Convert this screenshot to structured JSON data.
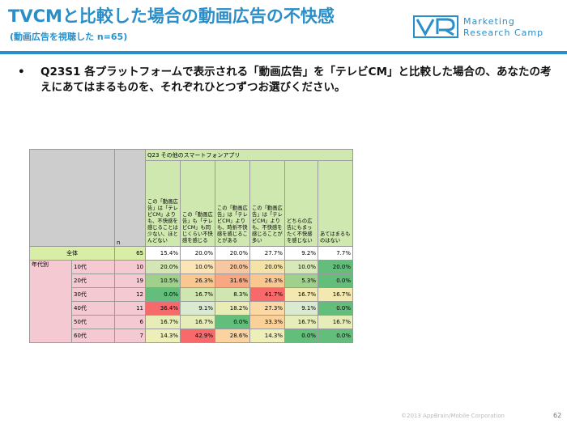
{
  "header": {
    "title": "TVCMと比較した場合の動画広告の不快感",
    "subtitle": "(動画広告を視聴した n=65)",
    "logo_line1": "Marketing",
    "logo_line2": "Research Camp"
  },
  "question": {
    "bullet": "•",
    "text": "Q23S1 各プラットフォームで表示される「動画広告」を「テレビCM」と比較した場合の、あなたの考えにあてはまるものを、それぞれひとつずつお選びください。"
  },
  "table": {
    "n_header": "n",
    "group_header": "Q23 その他のスマートフォンアプリ",
    "columns": [
      "この「動画広告」は「テレビCM」よりも、不快感を感じることは少ない、ほとんどない",
      "この「動画広告」も「テレビCM」も同じくらい不快感を感じる",
      "この「動画広告」は「テレビCM」よりも、時折不快感を感じることがある",
      "この「動画広告」は「テレビCM」よりも、不快感を感じることが多い",
      "どちらの広告にもまったく不快感を感じない",
      "あてはまるものはない"
    ],
    "total": {
      "label": "全体",
      "n": "65",
      "values": [
        "15.4%",
        "20.0%",
        "20.0%",
        "27.7%",
        "9.2%",
        "7.7%"
      ]
    },
    "age_group_label": "年代別",
    "rows": [
      {
        "label": "10代",
        "n": "10",
        "values": [
          "20.0%",
          "10.0%",
          "20.0%",
          "20.0%",
          "10.0%",
          "20.0%"
        ]
      },
      {
        "label": "20代",
        "n": "19",
        "values": [
          "10.5%",
          "26.3%",
          "31.6%",
          "26.3%",
          "5.3%",
          "0.0%"
        ]
      },
      {
        "label": "30代",
        "n": "12",
        "values": [
          "0.0%",
          "16.7%",
          "8.3%",
          "41.7%",
          "16.7%",
          "16.7%"
        ]
      },
      {
        "label": "40代",
        "n": "11",
        "values": [
          "36.4%",
          "9.1%",
          "18.2%",
          "27.3%",
          "9.1%",
          "0.0%"
        ]
      },
      {
        "label": "50代",
        "n": "6",
        "values": [
          "16.7%",
          "16.7%",
          "0.0%",
          "33.3%",
          "16.7%",
          "16.7%"
        ]
      },
      {
        "label": "60代",
        "n": "7",
        "values": [
          "14.3%",
          "42.9%",
          "28.6%",
          "14.3%",
          "0.0%",
          "0.0%"
        ]
      }
    ],
    "cell_colors": [
      [
        "#ffffff",
        "#ffffff",
        "#ffffff",
        "#ffffff",
        "#ffffff",
        "#ffffff"
      ],
      [
        "#d4e6b5",
        "#fbe5b8",
        "#f7c7a4",
        "#f3e3a8",
        "#d7e9b8",
        "#63be7b"
      ],
      [
        "#9fd18c",
        "#f9c891",
        "#f7a882",
        "#f9c891",
        "#9fd18c",
        "#63be7b"
      ],
      [
        "#63be7b",
        "#cfe6b0",
        "#cfe6b0",
        "#f8696b",
        "#f3e8b0",
        "#f3e8b0"
      ],
      [
        "#f8696b",
        "#d9ead0",
        "#eaecb6",
        "#fcd9a4",
        "#d9ead0",
        "#63be7b"
      ],
      [
        "#e7edb8",
        "#e7edb8",
        "#63be7b",
        "#fbd19a",
        "#e7edb8",
        "#e7edb8"
      ],
      [
        "#eeeeb8",
        "#f8696b",
        "#fbd3a0",
        "#eeeeb8",
        "#63be7b",
        "#63be7b"
      ]
    ]
  },
  "footer": {
    "copyright": "©2013 AppBrain/Mobile Corporation",
    "page_number": "62"
  }
}
